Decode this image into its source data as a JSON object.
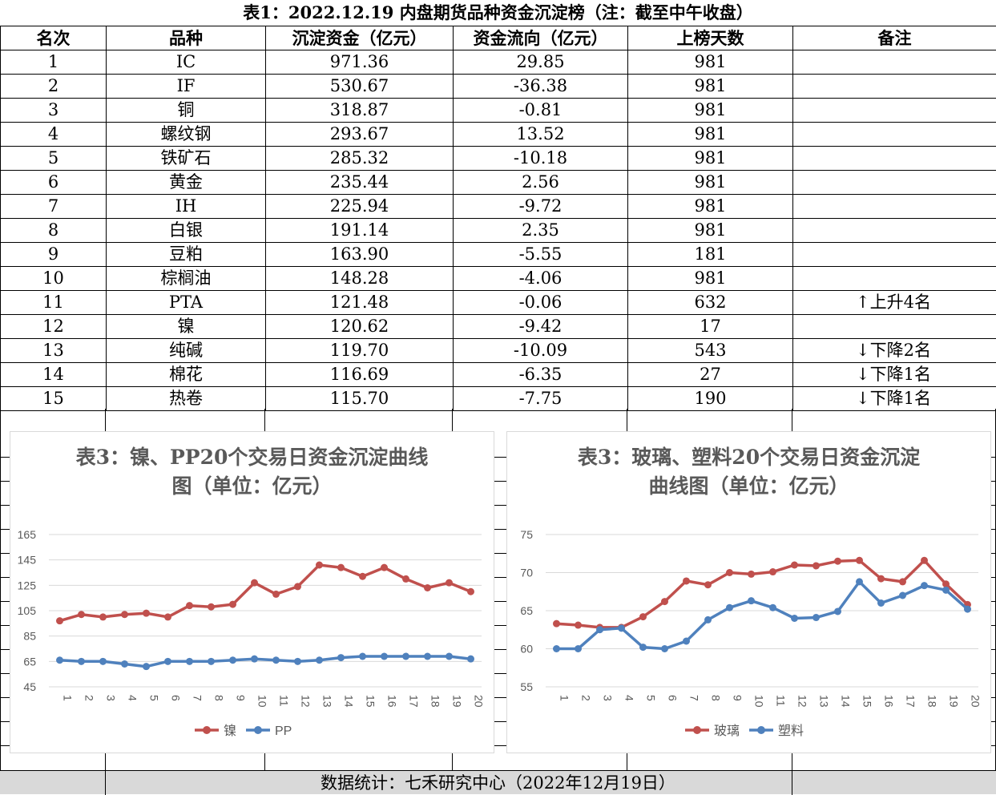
{
  "table": {
    "title": "表1：2022.12.19 内盘期货品种资金沉淀榜（注：截至中午收盘）",
    "headers": [
      "名次",
      "品种",
      "沉淀资金（亿元）",
      "资金流向（亿元）",
      "上榜天数",
      "备注"
    ],
    "rows": [
      {
        "rank": "1",
        "name": "IC",
        "fund": "971.36",
        "flow": "29.85",
        "days": "981",
        "note": ""
      },
      {
        "rank": "2",
        "name": "IF",
        "fund": "530.67",
        "flow": "-36.38",
        "days": "981",
        "note": ""
      },
      {
        "rank": "3",
        "name": "铜",
        "fund": "318.87",
        "flow": "-0.81",
        "days": "981",
        "note": ""
      },
      {
        "rank": "4",
        "name": "螺纹钢",
        "fund": "293.67",
        "flow": "13.52",
        "days": "981",
        "note": ""
      },
      {
        "rank": "5",
        "name": "铁矿石",
        "fund": "285.32",
        "flow": "-10.18",
        "days": "981",
        "note": ""
      },
      {
        "rank": "6",
        "name": "黄金",
        "fund": "235.44",
        "flow": "2.56",
        "days": "981",
        "note": ""
      },
      {
        "rank": "7",
        "name": "IH",
        "fund": "225.94",
        "flow": "-9.72",
        "days": "981",
        "note": ""
      },
      {
        "rank": "8",
        "name": "白银",
        "fund": "191.14",
        "flow": "2.35",
        "days": "981",
        "note": ""
      },
      {
        "rank": "9",
        "name": "豆粕",
        "fund": "163.90",
        "flow": "-5.55",
        "days": "181",
        "note": ""
      },
      {
        "rank": "10",
        "name": "棕榈油",
        "fund": "148.28",
        "flow": "-4.06",
        "days": "981",
        "note": ""
      },
      {
        "rank": "11",
        "name": "PTA",
        "fund": "121.48",
        "flow": "-0.06",
        "days": "632",
        "note": "↑上升4名"
      },
      {
        "rank": "12",
        "name": "镍",
        "fund": "120.62",
        "flow": "-9.42",
        "days": "17",
        "note": ""
      },
      {
        "rank": "13",
        "name": "纯碱",
        "fund": "119.70",
        "flow": "-10.09",
        "days": "543",
        "note": "↓下降2名"
      },
      {
        "rank": "14",
        "name": "棉花",
        "fund": "116.69",
        "flow": "-6.35",
        "days": "27",
        "note": "↓下降1名"
      },
      {
        "rank": "15",
        "name": "热卷",
        "fund": "115.70",
        "flow": "-7.75",
        "days": "190",
        "note": "↓下降1名"
      }
    ]
  },
  "footer": {
    "text": "数据统计：七禾研究中心（2022年12月19日）"
  },
  "chart_data": [
    {
      "type": "line",
      "title_line1": "表3：镍、PP20个交易日资金沉淀曲线",
      "title_line2": "图（单位：亿元）",
      "x": [
        "1",
        "2",
        "3",
        "4",
        "5",
        "6",
        "7",
        "8",
        "9",
        "10",
        "11",
        "12",
        "13",
        "14",
        "15",
        "16",
        "17",
        "18",
        "19",
        "20"
      ],
      "yticks": [
        45,
        65,
        85,
        105,
        125,
        145,
        165
      ],
      "ylim": [
        45,
        165
      ],
      "grid": true,
      "legend_position": "bottom",
      "series": [
        {
          "name": "镍",
          "color": "#c0504d",
          "values": [
            97,
            102,
            100,
            102,
            103,
            100,
            109,
            108,
            110,
            127,
            118,
            124,
            141,
            139,
            132,
            139,
            130,
            123,
            127,
            120
          ]
        },
        {
          "name": "PP",
          "color": "#4f81bd",
          "values": [
            66,
            65,
            65,
            63,
            61,
            65,
            65,
            65,
            66,
            67,
            66,
            65,
            66,
            68,
            69,
            69,
            69,
            69,
            69,
            67
          ]
        }
      ]
    },
    {
      "type": "line",
      "title_line1": "表3：玻璃、塑料20个交易日资金沉淀",
      "title_line2": "曲线图（单位：亿元）",
      "x": [
        "1",
        "2",
        "3",
        "4",
        "5",
        "6",
        "7",
        "8",
        "9",
        "10",
        "11",
        "12",
        "13",
        "14",
        "15",
        "16",
        "17",
        "18",
        "19",
        "20"
      ],
      "yticks": [
        55,
        60,
        65,
        70,
        75
      ],
      "ylim": [
        55,
        75
      ],
      "grid": true,
      "legend_position": "bottom",
      "series": [
        {
          "name": "玻璃",
          "color": "#c0504d",
          "values": [
            63.3,
            63.1,
            62.8,
            62.8,
            64.2,
            66.2,
            68.9,
            68.4,
            70.0,
            69.8,
            70.1,
            71.0,
            70.9,
            71.5,
            71.6,
            69.2,
            68.8,
            71.6,
            68.5,
            65.8
          ]
        },
        {
          "name": "塑料",
          "color": "#4f81bd",
          "values": [
            60.0,
            60.0,
            62.5,
            62.7,
            60.2,
            60.0,
            61.0,
            63.8,
            65.4,
            66.3,
            65.4,
            64.0,
            64.1,
            64.9,
            68.8,
            66.0,
            67.0,
            68.3,
            67.7,
            65.2
          ]
        }
      ]
    }
  ]
}
